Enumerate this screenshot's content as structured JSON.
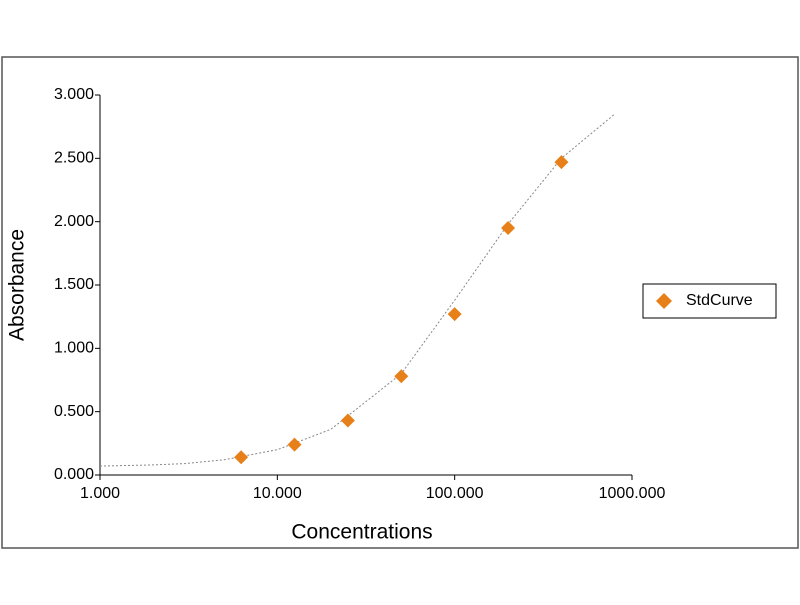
{
  "chart_data": {
    "type": "scatter",
    "x_label": "Concentrations",
    "y_label": "Absorbance",
    "xscale": "log",
    "xlim": [
      1,
      1000
    ],
    "xticks": [
      {
        "value": 1,
        "label": "1.000"
      },
      {
        "value": 10,
        "label": "10.000"
      },
      {
        "value": 100,
        "label": "100.000"
      },
      {
        "value": 1000,
        "label": "1000.000"
      }
    ],
    "ylim": [
      0,
      3
    ],
    "yticks": [
      {
        "value": 0,
        "label": "0.000"
      },
      {
        "value": 0.5,
        "label": "0.500"
      },
      {
        "value": 1,
        "label": "1.000"
      },
      {
        "value": 1.5,
        "label": "1.500"
      },
      {
        "value": 2,
        "label": "2.000"
      },
      {
        "value": 2.5,
        "label": "2.500"
      },
      {
        "value": 3,
        "label": "3.000"
      }
    ],
    "grid": false,
    "legend": "right",
    "series": [
      {
        "name": "StdCurve",
        "color": "#e8801a",
        "x": [
          6.25,
          12.5,
          25,
          50,
          100,
          200,
          400
        ],
        "values": [
          0.14,
          0.24,
          0.43,
          0.78,
          1.27,
          1.95,
          2.47
        ]
      }
    ],
    "trendline": {
      "color": "#888888",
      "x": [
        1,
        2,
        3,
        5,
        10,
        20,
        50,
        100,
        200,
        400,
        800
      ],
      "values": [
        0.07,
        0.08,
        0.09,
        0.12,
        0.2,
        0.36,
        0.8,
        1.38,
        1.98,
        2.5,
        2.85
      ]
    }
  }
}
